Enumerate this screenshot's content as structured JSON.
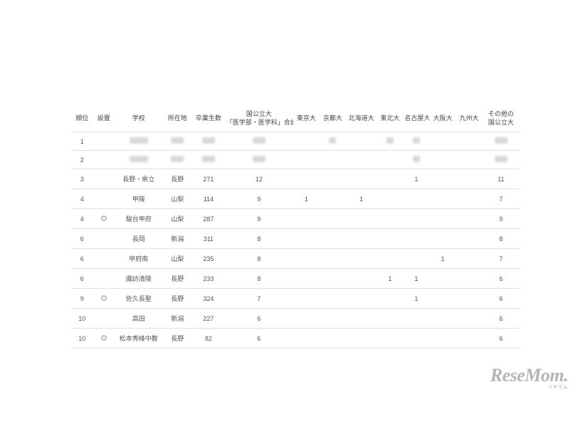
{
  "table": {
    "headers": {
      "rank": "順位",
      "setup": "設置",
      "school": "学校",
      "location": "所在地",
      "grads": "卒業生数",
      "total": "国公立大\n「医学部・医学科」合計",
      "tokyo": "東京大",
      "kyoto": "京都大",
      "hokkaido": "北海道大",
      "tohoku": "東北大",
      "nagoya": "名古屋大",
      "osaka": "大阪大",
      "kyushu": "九州大",
      "other": "その他の\n国公立大"
    },
    "rows": [
      {
        "rank": "1",
        "setup": "",
        "school": "BLUR3",
        "location": "BLUR2",
        "grads": "BLUR2",
        "total": "BLUR2",
        "tokyo": "",
        "kyoto": "BLUR1",
        "hokkaido": "",
        "tohoku": "BLUR1",
        "nagoya": "BLUR1",
        "osaka": "",
        "kyushu": "",
        "other": "BLUR2"
      },
      {
        "rank": "2",
        "setup": "",
        "school": "BLUR3",
        "location": "BLUR2",
        "grads": "BLUR2",
        "total": "BLUR2",
        "tokyo": "",
        "kyoto": "",
        "hokkaido": "",
        "tohoku": "",
        "nagoya": "BLUR1",
        "osaka": "",
        "kyushu": "",
        "other": "BLUR2"
      },
      {
        "rank": "3",
        "setup": "",
        "school": "長野・県立",
        "location": "長野",
        "grads": "271",
        "total": "12",
        "tokyo": "",
        "kyoto": "",
        "hokkaido": "",
        "tohoku": "",
        "nagoya": "1",
        "osaka": "",
        "kyushu": "",
        "other": "11"
      },
      {
        "rank": "4",
        "setup": "",
        "school": "甲陵",
        "location": "山梨",
        "grads": "114",
        "total": "9",
        "tokyo": "1",
        "kyoto": "",
        "hokkaido": "1",
        "tohoku": "",
        "nagoya": "",
        "osaka": "",
        "kyushu": "",
        "other": "7"
      },
      {
        "rank": "4",
        "setup": "RING",
        "school": "駿台甲府",
        "location": "山梨",
        "grads": "287",
        "total": "9",
        "tokyo": "",
        "kyoto": "",
        "hokkaido": "",
        "tohoku": "",
        "nagoya": "",
        "osaka": "",
        "kyushu": "",
        "other": "9"
      },
      {
        "rank": "6",
        "setup": "",
        "school": "長岡",
        "location": "新潟",
        "grads": "311",
        "total": "8",
        "tokyo": "",
        "kyoto": "",
        "hokkaido": "",
        "tohoku": "",
        "nagoya": "",
        "osaka": "",
        "kyushu": "",
        "other": "8"
      },
      {
        "rank": "6",
        "setup": "",
        "school": "甲府南",
        "location": "山梨",
        "grads": "235",
        "total": "8",
        "tokyo": "",
        "kyoto": "",
        "hokkaido": "",
        "tohoku": "",
        "nagoya": "",
        "osaka": "1",
        "kyushu": "",
        "other": "7"
      },
      {
        "rank": "6",
        "setup": "",
        "school": "諏訪清陵",
        "location": "長野",
        "grads": "233",
        "total": "8",
        "tokyo": "",
        "kyoto": "",
        "hokkaido": "",
        "tohoku": "1",
        "nagoya": "1",
        "osaka": "",
        "kyushu": "",
        "other": "6"
      },
      {
        "rank": "9",
        "setup": "RING",
        "school": "佐久長聖",
        "location": "長野",
        "grads": "324",
        "total": "7",
        "tokyo": "",
        "kyoto": "",
        "hokkaido": "",
        "tohoku": "",
        "nagoya": "1",
        "osaka": "",
        "kyushu": "",
        "other": "6"
      },
      {
        "rank": "10",
        "setup": "",
        "school": "高田",
        "location": "新潟",
        "grads": "227",
        "total": "6",
        "tokyo": "",
        "kyoto": "",
        "hokkaido": "",
        "tohoku": "",
        "nagoya": "",
        "osaka": "",
        "kyushu": "",
        "other": "6"
      },
      {
        "rank": "10",
        "setup": "RING",
        "school": "松本秀峰中教",
        "location": "長野",
        "grads": "82",
        "total": "6",
        "tokyo": "",
        "kyoto": "",
        "hokkaido": "",
        "tohoku": "",
        "nagoya": "",
        "osaka": "",
        "kyushu": "",
        "other": "6"
      }
    ]
  },
  "watermark": {
    "main": "ReseMom",
    "sub": "リセマム"
  },
  "colors": {
    "text": "#555555",
    "header_text": "#444444",
    "border": "#e0e0e0",
    "blur": "#d8d8d8",
    "ring": "#bbbbbb",
    "watermark": "rgba(120,120,120,0.55)",
    "background": "#ffffff"
  }
}
